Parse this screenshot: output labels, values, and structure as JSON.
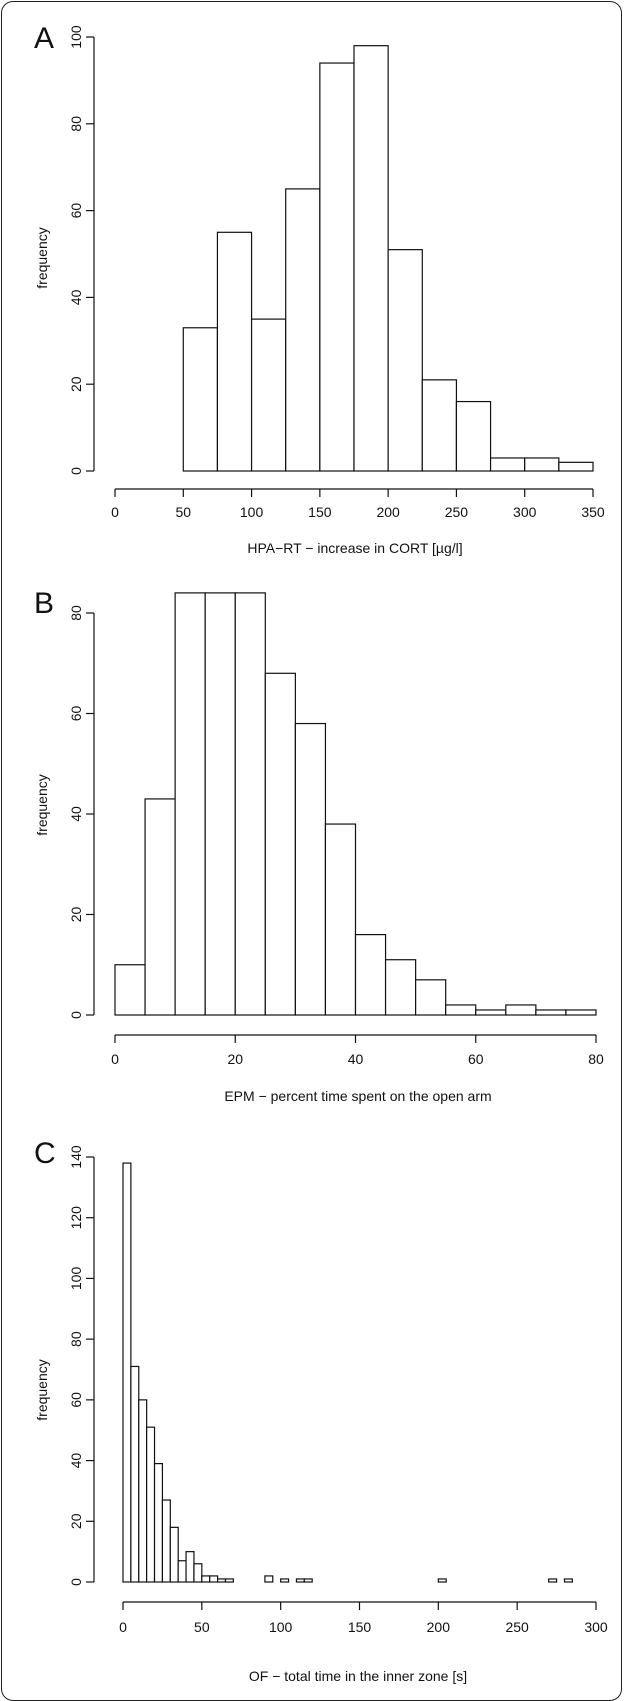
{
  "chart_data": [
    {
      "type": "bar",
      "panel": "A",
      "xlabel": "HPA−RT − increase in CORT [µg/l]",
      "ylabel": "frequency",
      "xticks": [
        0,
        50,
        100,
        150,
        200,
        250,
        300,
        350
      ],
      "yticks": [
        0,
        20,
        40,
        60,
        80,
        100
      ],
      "xlim": [
        0,
        350
      ],
      "ylim": [
        0,
        100
      ],
      "bin_edges": [
        0,
        25,
        50,
        75,
        100,
        125,
        150,
        175,
        200,
        225,
        250,
        275,
        300,
        325,
        350
      ],
      "values": [
        0,
        0,
        33,
        55,
        35,
        65,
        94,
        98,
        51,
        21,
        16,
        3,
        3,
        2
      ],
      "grid": false
    },
    {
      "type": "bar",
      "panel": "B",
      "xlabel": "EPM − percent time spent on the open arm",
      "ylabel": "frequency",
      "xticks": [
        0,
        20,
        40,
        60,
        80
      ],
      "yticks": [
        0,
        20,
        40,
        60,
        80
      ],
      "xlim": [
        0,
        80
      ],
      "ylim": [
        0,
        80
      ],
      "bin_edges": [
        0,
        5,
        10,
        15,
        20,
        25,
        30,
        35,
        40,
        45,
        50,
        55,
        60,
        65,
        70,
        75,
        80
      ],
      "values": [
        10,
        43,
        84,
        84,
        84,
        68,
        58,
        38,
        16,
        11,
        7,
        2,
        1,
        2,
        1,
        1
      ],
      "grid": false
    },
    {
      "type": "bar",
      "panel": "C",
      "xlabel": "OF − total time in the inner zone [s]",
      "ylabel": "frequency",
      "xticks": [
        0,
        50,
        100,
        150,
        200,
        250,
        300
      ],
      "yticks": [
        0,
        20,
        40,
        60,
        80,
        100,
        120,
        140
      ],
      "xlim": [
        0,
        300
      ],
      "ylim": [
        0,
        140
      ],
      "bin_width": 5,
      "bins": [
        {
          "start": 0,
          "value": 138
        },
        {
          "start": 5,
          "value": 71
        },
        {
          "start": 10,
          "value": 60
        },
        {
          "start": 15,
          "value": 51
        },
        {
          "start": 20,
          "value": 39
        },
        {
          "start": 25,
          "value": 27
        },
        {
          "start": 30,
          "value": 18
        },
        {
          "start": 35,
          "value": 7
        },
        {
          "start": 40,
          "value": 10
        },
        {
          "start": 45,
          "value": 6
        },
        {
          "start": 50,
          "value": 2
        },
        {
          "start": 55,
          "value": 2
        },
        {
          "start": 60,
          "value": 1
        },
        {
          "start": 65,
          "value": 1
        },
        {
          "start": 90,
          "value": 2
        },
        {
          "start": 100,
          "value": 1
        },
        {
          "start": 110,
          "value": 1
        },
        {
          "start": 115,
          "value": 1
        },
        {
          "start": 200,
          "value": 1
        },
        {
          "start": 270,
          "value": 1
        },
        {
          "start": 280,
          "value": 1
        }
      ],
      "grid": false
    }
  ]
}
